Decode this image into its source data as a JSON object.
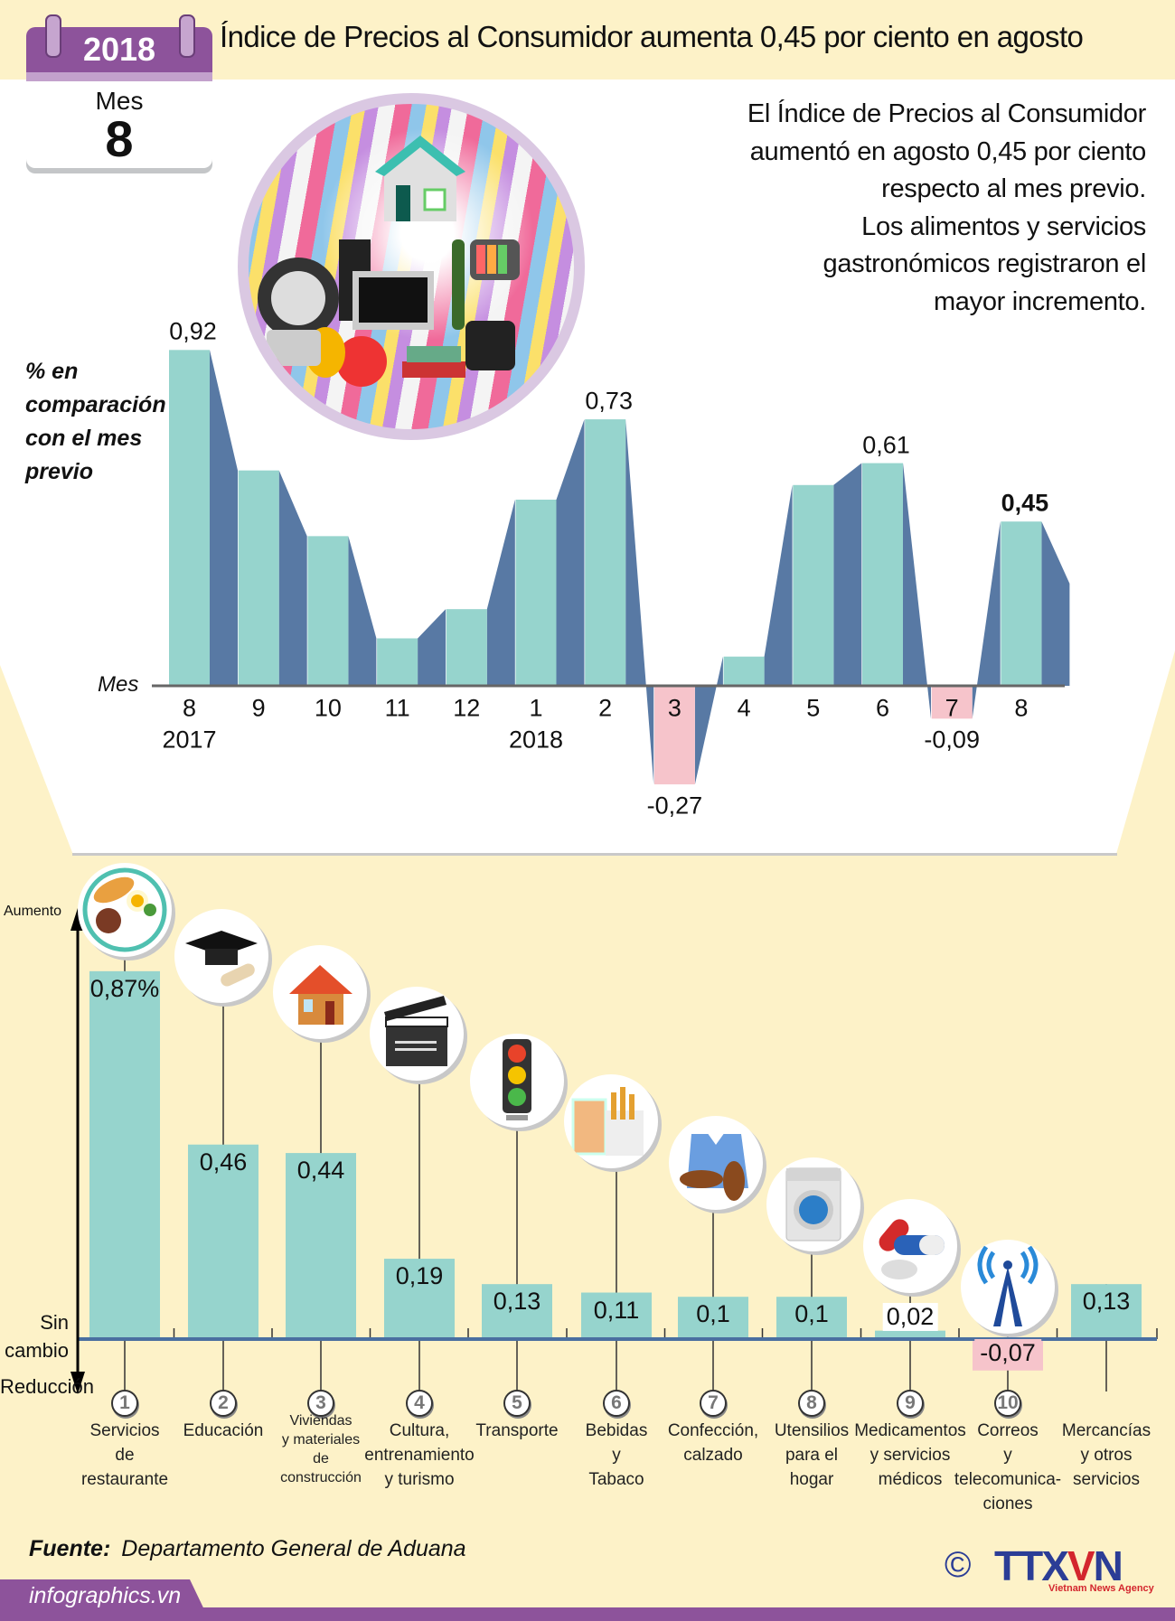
{
  "header": {
    "title": "Índice de Precios al Consumidor aumenta 0,45 por ciento en agosto",
    "calendar": {
      "year": "2018",
      "month_label": "Mes",
      "month": "8"
    }
  },
  "summary": [
    "El Índice de Precios al Consumidor",
    "aumentó en agosto 0,45 por ciento",
    "respecto al mes previo.",
    "Los alimentos y servicios",
    "gastronómicos registraron el",
    "mayor incremento."
  ],
  "colors": {
    "bar_positive": "#96d4cd",
    "bar_side": "#5879a4",
    "bar_negative": "#f6c4cb",
    "background": "#fdf2c8",
    "accent_purple": "#8d539b",
    "axis": "#4a6fa0"
  },
  "chart_data": [
    {
      "type": "bar",
      "title": "",
      "ylabel": "% en comparación con el mes previo",
      "xlabel": "Mes",
      "categories": [
        "8",
        "9",
        "10",
        "11",
        "12",
        "1",
        "2",
        "3",
        "4",
        "5",
        "6",
        "7",
        "8"
      ],
      "year_labels": {
        "0": "2017",
        "5": "2018"
      },
      "values": [
        0.92,
        0.59,
        0.41,
        0.13,
        0.21,
        0.51,
        0.73,
        -0.27,
        0.08,
        0.55,
        0.61,
        -0.09,
        0.45
      ],
      "data_labels": {
        "0": "0,92",
        "6": "0,73",
        "7": "-0,27",
        "10": "0,61",
        "11": "-0,09",
        "12": "0,45"
      },
      "highlight_index": 12,
      "grid": false
    },
    {
      "type": "bar",
      "title": "",
      "ylabel": "",
      "axis_labels": {
        "up": "Aumento",
        "zero": "Sin cambio",
        "down": "Reducción"
      },
      "categories": [
        {
          "num": "1",
          "label": [
            "Servicios",
            "de",
            "restaurante"
          ],
          "icon": "food-plate-icon"
        },
        {
          "num": "2",
          "label": [
            "Educación"
          ],
          "icon": "graduation-cap-icon"
        },
        {
          "num": "3",
          "label": [
            "Viviendas",
            "y materiales",
            "de",
            "construcción"
          ],
          "icon": "house-icon"
        },
        {
          "num": "4",
          "label": [
            "Cultura,",
            "entrenamiento",
            "y turismo"
          ],
          "icon": "clapperboard-icon"
        },
        {
          "num": "5",
          "label": [
            "Transporte"
          ],
          "icon": "traffic-light-icon"
        },
        {
          "num": "6",
          "label": [
            "Bebidas",
            "y",
            "Tabaco"
          ],
          "icon": "drink-cigarettes-icon"
        },
        {
          "num": "7",
          "label": [
            "Confección,",
            "calzado"
          ],
          "icon": "shirt-shoes-icon"
        },
        {
          "num": "8",
          "label": [
            "Utensilios",
            "para el",
            "hogar"
          ],
          "icon": "washing-machine-icon"
        },
        {
          "num": "9",
          "label": [
            "Medicamentos",
            "y servicios",
            "médicos"
          ],
          "icon": "pills-icon"
        },
        {
          "num": "10",
          "label": [
            "Correos",
            "y",
            "telecomunica-",
            "ciones"
          ],
          "icon": "antenna-tower-icon"
        },
        {
          "num": "",
          "label": [
            "Mercancías",
            "y otros",
            "servicios"
          ],
          "icon": ""
        }
      ],
      "values": [
        0.87,
        0.46,
        0.44,
        0.19,
        0.13,
        0.11,
        0.1,
        0.1,
        0.02,
        -0.07,
        0.13
      ],
      "data_labels": [
        "0,87%",
        "0,46",
        "0,44",
        "0,19",
        "0,13",
        "0,11",
        "0,1",
        "0,1",
        "0,02",
        "-0,07",
        "0,13"
      ],
      "grid": false
    }
  ],
  "footer": {
    "source_label": "Fuente:",
    "source": "Departamento General de Aduana",
    "site": "infographics.vn",
    "copyright": "©",
    "logo_text": "TTXVN",
    "logo_sub": "Vietnam News Agency"
  }
}
